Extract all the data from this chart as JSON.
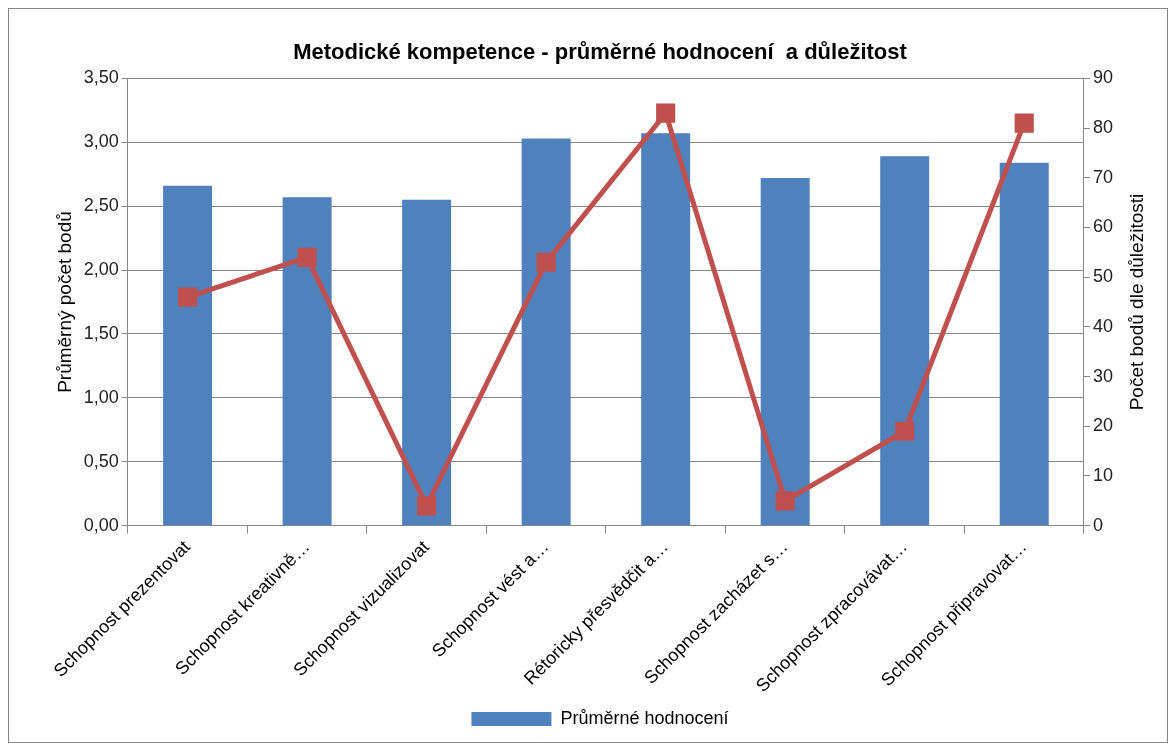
{
  "chart_data": {
    "type": "bar",
    "title": "Metodické kompetence - průměrné hodnocení  a důležitost",
    "ylabel": "Průměrný počet bodů",
    "y2label": "Počet bodů dle důležitosti",
    "categories": [
      "Schopnost prezentovat",
      "Schopnost kreativně…",
      "Schopnost vizualizovat",
      "Schopnost vést a…",
      "Rétoricky přesvědčit a…",
      "Schopnost zacházet s…",
      "Schopnost zpracovávat…",
      "Schopnost připravovat…"
    ],
    "series": [
      {
        "name": "Průměrné hodnocení",
        "color": "#4f81bd",
        "values": [
          2.66,
          2.57,
          2.55,
          3.03,
          3.07,
          2.72,
          2.89,
          2.84
        ]
      },
      {
        "type": "line",
        "axis": "y2",
        "color": "#c0504d",
        "marker": "square",
        "values": [
          46,
          54,
          4,
          53,
          83,
          5,
          19,
          81
        ]
      }
    ],
    "ylim": [
      0,
      3.5
    ],
    "yticks": [
      {
        "value": 0,
        "label": "0,00"
      },
      {
        "value": 0.5,
        "label": "0,50"
      },
      {
        "value": 1,
        "label": "1,00"
      },
      {
        "value": 1.5,
        "label": "1,50"
      },
      {
        "value": 2,
        "label": "2,00"
      },
      {
        "value": 2.5,
        "label": "2,50"
      },
      {
        "value": 3,
        "label": "3,00"
      },
      {
        "value": 3.5,
        "label": "3,50"
      }
    ],
    "y2lim": [
      0,
      90
    ],
    "y2ticks": [
      0,
      10,
      20,
      30,
      40,
      50,
      60,
      70,
      80,
      90
    ],
    "grid": "y",
    "legend": "bottom"
  }
}
